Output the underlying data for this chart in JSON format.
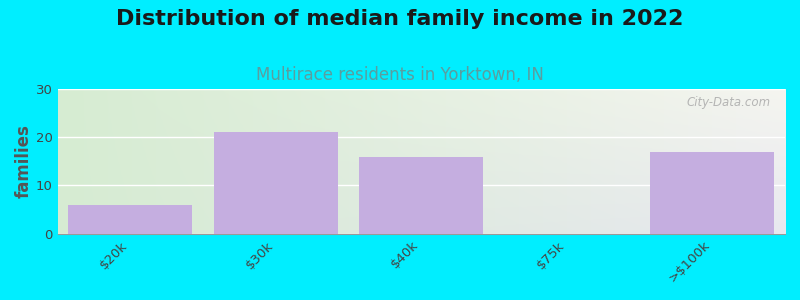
{
  "title": "Distribution of median family income in 2022",
  "subtitle": "Multirace residents in Yorktown, IN",
  "categories": [
    "$20k",
    "$30k",
    "$40k",
    "$75k",
    ">$100k"
  ],
  "values": [
    6,
    21,
    16,
    0,
    17
  ],
  "bar_color": "#c5aee0",
  "bar_edgecolor": "#c5aee0",
  "ylabel": "families",
  "ylim": [
    0,
    30
  ],
  "yticks": [
    0,
    10,
    20,
    30
  ],
  "background_outer": "#00eeff",
  "grad_top_left": "#d6ecd2",
  "grad_top_right": "#f5f5f0",
  "grad_bottom_left": "#d6ecd2",
  "grad_bottom_right": "#e8e8f0",
  "title_fontsize": 16,
  "subtitle_fontsize": 12,
  "subtitle_color": "#5a9ea0",
  "watermark": "City-Data.com",
  "watermark_color": "#aaaaaa",
  "ylabel_fontsize": 12,
  "ylabel_color": "#555555"
}
